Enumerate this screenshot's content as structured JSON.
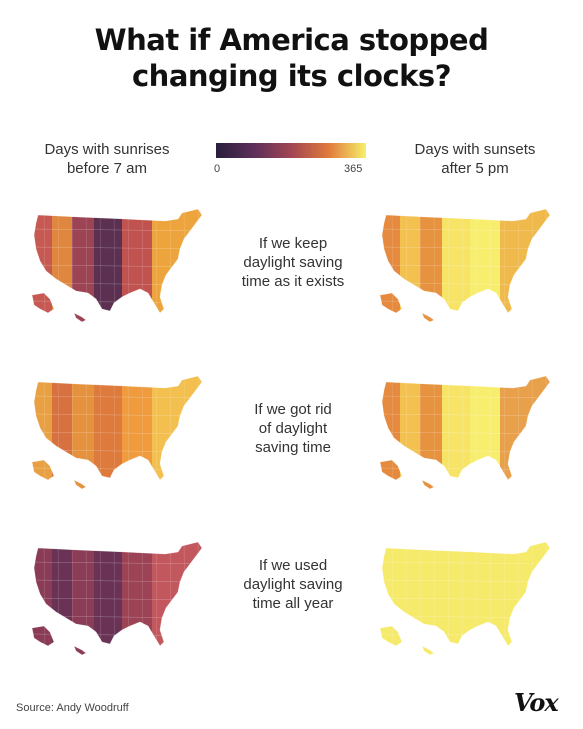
{
  "title_line1": "What if America stopped",
  "title_line2": "changing its clocks?",
  "legend": {
    "left_label_line1": "Days with sunrises",
    "left_label_line2": "before 7 am",
    "right_label_line1": "Days with sunsets",
    "right_label_line2": "after 5 pm",
    "min_tick": "0",
    "max_tick": "365",
    "scale_colors": [
      "#2a1f3d",
      "#5c2f5a",
      "#a14553",
      "#e07a3c",
      "#f7ef6a"
    ]
  },
  "scenarios": [
    {
      "line1": "If we keep",
      "line2": "daylight saving",
      "line3": "time as it exists",
      "sunrise_band_colors": [
        "#c65a52",
        "#e0873f",
        "#9c4454",
        "#5b3050",
        "#c0524f",
        "#eea43c"
      ],
      "sunset_band_colors": [
        "#e58a3e",
        "#f3c14f",
        "#e7923f",
        "#f7e467",
        "#f8ee6e",
        "#f0b94b"
      ]
    },
    {
      "line1": "If we got rid",
      "line2": "of daylight",
      "line3": "saving time",
      "sunrise_band_colors": [
        "#e9a043",
        "#d87140",
        "#e5923e",
        "#dd7a3c",
        "#ef9b3e",
        "#f3c04f"
      ],
      "sunset_band_colors": [
        "#e58a3e",
        "#f3c14f",
        "#e7923f",
        "#f7e467",
        "#f8ee6e",
        "#e8a04a"
      ]
    },
    {
      "line1": "If we used",
      "line2": "daylight saving",
      "line3": "time all year",
      "sunrise_band_colors": [
        "#8a3c56",
        "#6a3356",
        "#8b3d57",
        "#6a3356",
        "#9c4355",
        "#c2585e"
      ],
      "sunset_band_colors": [
        "#f6ea6b",
        "#f6ea6b",
        "#f6ea6b",
        "#f6ea6b",
        "#f6ea6b",
        "#f6ea6b"
      ]
    }
  ],
  "source": "Source: Andy Woodruff",
  "logo": "Vox"
}
